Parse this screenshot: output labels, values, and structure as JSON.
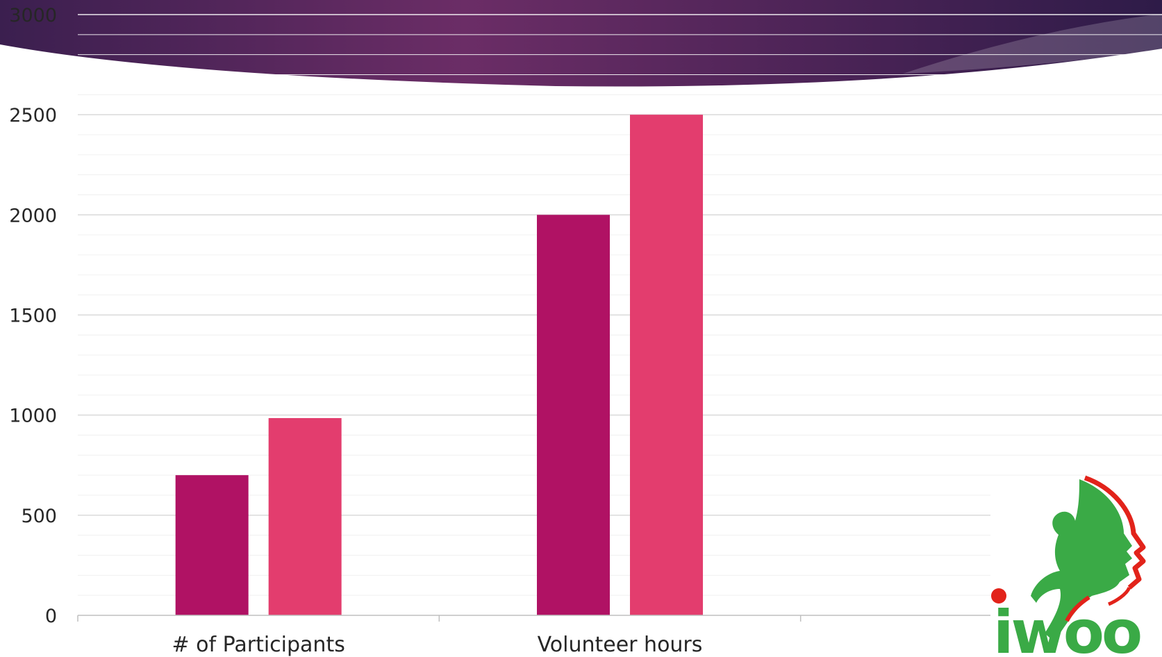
{
  "chart_data": {
    "type": "bar",
    "categories": [
      "# of Participants",
      "Volunteer hours",
      ""
    ],
    "series": [
      {
        "values": [
          700,
          2000,
          null
        ],
        "color": "#b01264"
      },
      {
        "values": [
          985,
          2500,
          null
        ],
        "color": "#e33d6e"
      }
    ],
    "ylim": [
      0,
      3000
    ],
    "yticks": [
      0,
      500,
      1000,
      1500,
      2000,
      2500,
      3000
    ],
    "ytick_labels": [
      "0",
      "500",
      "1000",
      "1500",
      "2000",
      "2500",
      "3000"
    ],
    "grid": true,
    "legend": "none"
  },
  "theme": {
    "banner_dark": "#3b1f4f",
    "banner_mid": "#6b2d66",
    "gridline_major": "#d9d9d9",
    "gridline_minor": "#f0f0f0",
    "axis_text": "#262626"
  },
  "logo": {
    "text": "iwoo",
    "green": "#3aaa46",
    "red": "#e2231a",
    "icon_name": "iwoo-logo-icon"
  }
}
